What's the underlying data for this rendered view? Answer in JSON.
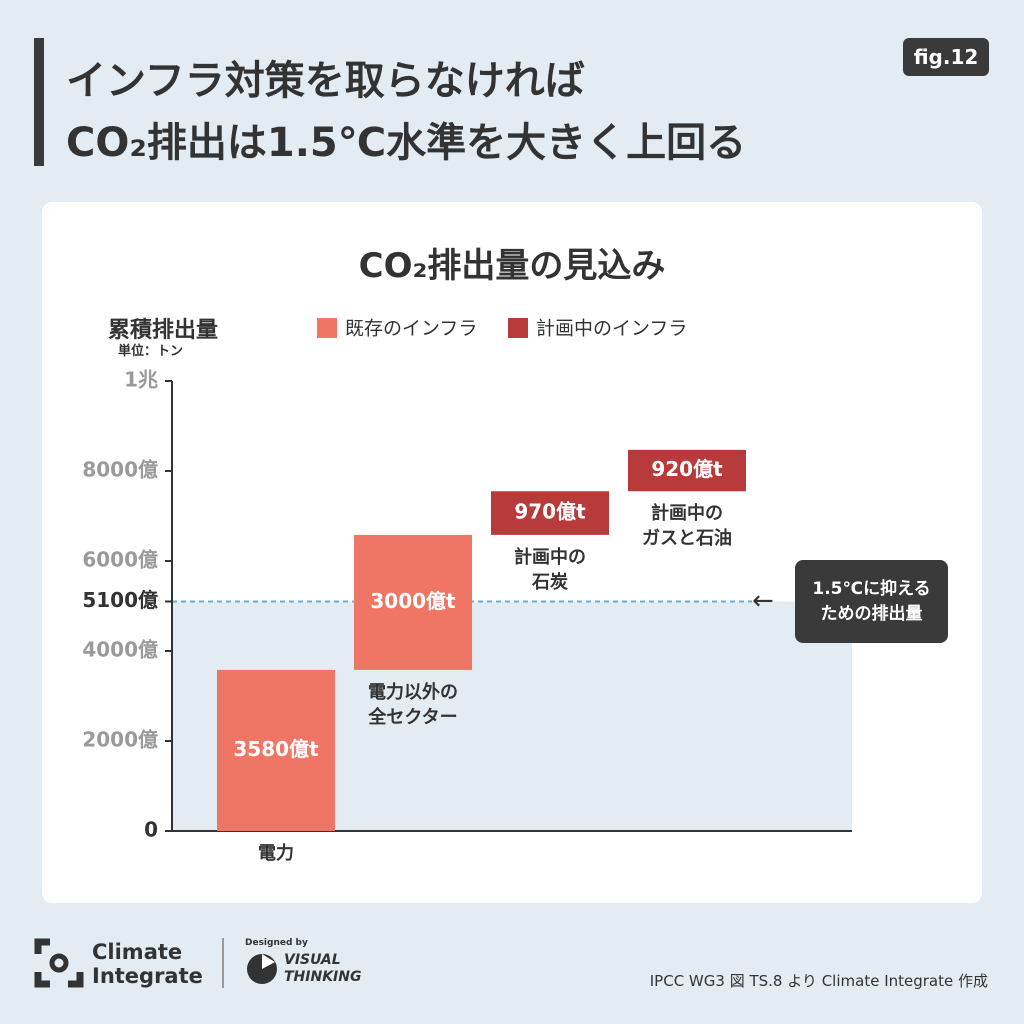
{
  "header": {
    "title_lines": [
      "インフラ対策を取らなければ",
      "CO₂排出は1.5℃水準を大きく上回る"
    ],
    "fig": "fig.12"
  },
  "chart_data": {
    "type": "waterfall",
    "title": "CO₂排出量の見込み",
    "y_label": "累積排出量",
    "y_unit": "単位：トン",
    "categories": [
      "電力",
      "電力以外の\n全セクター",
      "計画中の\n石炭",
      "計画中の\nガスと石油"
    ],
    "series": [
      {
        "name": "既存のインフラ",
        "color": "#ef7565",
        "values": [
          3580,
          3000,
          null,
          null
        ],
        "value_labels": [
          "3580億t",
          "3000億t",
          null,
          null
        ]
      },
      {
        "name": "計画中のインフラ",
        "color": "#b83a3a",
        "values": [
          null,
          null,
          970,
          920
        ],
        "value_labels": [
          null,
          null,
          "970億t",
          "920億t"
        ]
      }
    ],
    "ylim": [
      0,
      10000
    ],
    "yticks": [
      0,
      {
        "value": 2000,
        "label": "2000億"
      },
      {
        "value": 4000,
        "label": "4000億"
      },
      {
        "value": 5100,
        "label": "5100億"
      },
      {
        "value": 6000,
        "label": "6000億"
      },
      {
        "value": 8000,
        "label": "8000億"
      },
      {
        "value": 10000,
        "label": "1兆"
      }
    ],
    "reference": {
      "value": 5100,
      "label": "1.5℃に抑える\nための排出量"
    }
  },
  "footer": {
    "logo_lines": [
      "Climate",
      "Integrate"
    ],
    "designed_by": "Designed by",
    "brand_lines": [
      "VISUAL",
      "THINKING"
    ],
    "source": "IPCC WG3 図 TS.8 より Climate Integrate 作成"
  }
}
